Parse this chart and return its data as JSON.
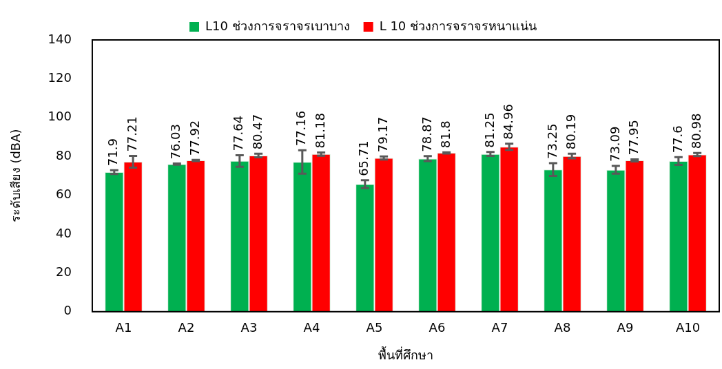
{
  "chart_data": {
    "type": "bar",
    "xlabel": "พื้นที่ศึกษา",
    "ylabel": "ระดับเสียง (dBA)",
    "categories": [
      "A1",
      "A2",
      "A3",
      "A4",
      "A5",
      "A6",
      "A7",
      "A8",
      "A9",
      "A10"
    ],
    "series": [
      {
        "name": "L10 ช่วงการจราจรเบาบาง",
        "color": "#00b050",
        "values": [
          71.9,
          76.03,
          77.64,
          77.16,
          65.71,
          78.87,
          81.25,
          73.25,
          73.09,
          77.6
        ],
        "errors": [
          1,
          0.3,
          3,
          6,
          2,
          1.3,
          1,
          3.3,
          2,
          2
        ]
      },
      {
        "name": "L 10 ช่วงการจราจรหนาแน่น",
        "color": "#ff0000",
        "values": [
          77.21,
          77.92,
          80.47,
          81.18,
          79.17,
          81.8,
          84.96,
          80.19,
          77.95,
          80.98
        ],
        "errors": [
          3,
          0.3,
          0.9,
          0.8,
          0.8,
          0.3,
          1.6,
          1.2,
          0.5,
          0.8
        ]
      }
    ],
    "ylim": [
      0,
      140
    ],
    "yticks": [
      0,
      20,
      40,
      60,
      80,
      100,
      120,
      140
    ],
    "grid": false,
    "legend": "top",
    "data_labels": true
  }
}
